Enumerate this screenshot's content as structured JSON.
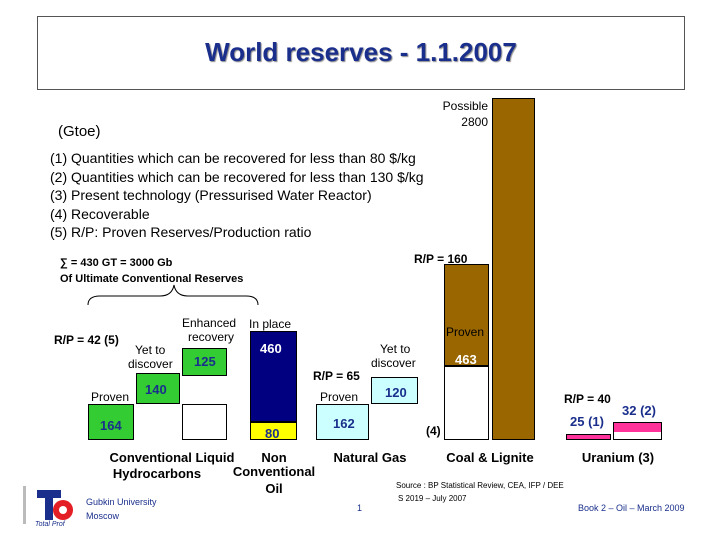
{
  "title": "World reserves - 1.1.2007",
  "unit_label": "(Gtoe)",
  "notes": [
    "(1) Quantities which can be recovered for less than 80 $/kg",
    "(2) Quantities which can be recovered for less than 130 $/kg",
    "(3) Present technology (Pressurised Water Reactor)",
    "(4) Recoverable",
    "(5) R/P: Proven Reserves/Production ratio"
  ],
  "ultimate": {
    "line1": "∑ = 430 GT = 3000 Gb",
    "line2": "Of Ultimate Conventional Reserves"
  },
  "chart_data": {
    "type": "bar",
    "title": "World reserves - 1.1.2007",
    "ylabel": "(Gtoe)",
    "categories": [
      "Conventional Liquid Hydrocarbons",
      "Non Conventional Oil",
      "Natural Gas",
      "Coal & Lignite",
      "Uranium (3)"
    ],
    "category_labels": {
      "liquid_line1": "Conventional Liquid",
      "liquid_line2": "Hydrocarbons",
      "nonconv_line1": "Non",
      "nonconv_line2": "Conventional",
      "nonconv_line3": "Oil",
      "gas": "Natural Gas",
      "coal": "Coal & Lignite",
      "uranium": "Uranium (3)"
    },
    "segments": {
      "liquid_proven": {
        "label": "Proven",
        "value": 164,
        "value_text": "164",
        "color": "#33cc33"
      },
      "liquid_yet": {
        "label_line1": "Yet to",
        "label_line2": "discover",
        "value": 140,
        "value_text": "140",
        "color": "#33cc33"
      },
      "liquid_enhanced": {
        "label_line1": "Enhanced",
        "label_line2": "recovery",
        "value": 125,
        "value_text": "125",
        "color": "#33cc33"
      },
      "nonconv_recoverable": {
        "value": 80,
        "value_text": "80",
        "color": "#ffff00"
      },
      "nonconv_inplace": {
        "label": "In place",
        "value": 460,
        "value_text": "460",
        "color": "#000080"
      },
      "gas_proven": {
        "label": "Proven",
        "value": 162,
        "value_text": "162",
        "color": "#ccffff"
      },
      "gas_yet": {
        "label_line1": "Yet to",
        "label_line2": "discover",
        "value": 120,
        "value_text": "120",
        "color": "#ccffff"
      },
      "coal_recoverable": {
        "label": "(4)"
      },
      "coal_proven": {
        "label": "Proven",
        "value": 463,
        "value_text": "463",
        "color": "#996600"
      },
      "coal_possible": {
        "label_line1": "Possible",
        "label_line2": "2800",
        "value": 2800,
        "color": "#996600"
      },
      "uranium_low": {
        "value": 25,
        "value_text": "25 (1)",
        "color": "#ff3399"
      },
      "uranium_high": {
        "value": 32,
        "value_text": "32 (2)",
        "color": "#ff3399"
      }
    },
    "rp": {
      "liquid": "R/P = 42 (5)",
      "gas": "R/P = 65",
      "coal": "R/P = 160",
      "uranium": "R/P = 40"
    }
  },
  "source_line1": "Source : BP Statistical Review, CEA, IFP / DEE",
  "source_line2": "S 2019 – July 2007",
  "footer": {
    "university_line1": "Gubkin University",
    "university_line2": "Moscow",
    "page_number": "1",
    "book": "Book 2 – Oil – March 2009",
    "logo_text": "Total Prof"
  },
  "colors": {
    "title": "#1a2f8c",
    "green": "#33cc33",
    "navy": "#000080",
    "yellow": "#ffff00",
    "cyan": "#ccffff",
    "brown": "#996600",
    "pink": "#ff3399"
  }
}
